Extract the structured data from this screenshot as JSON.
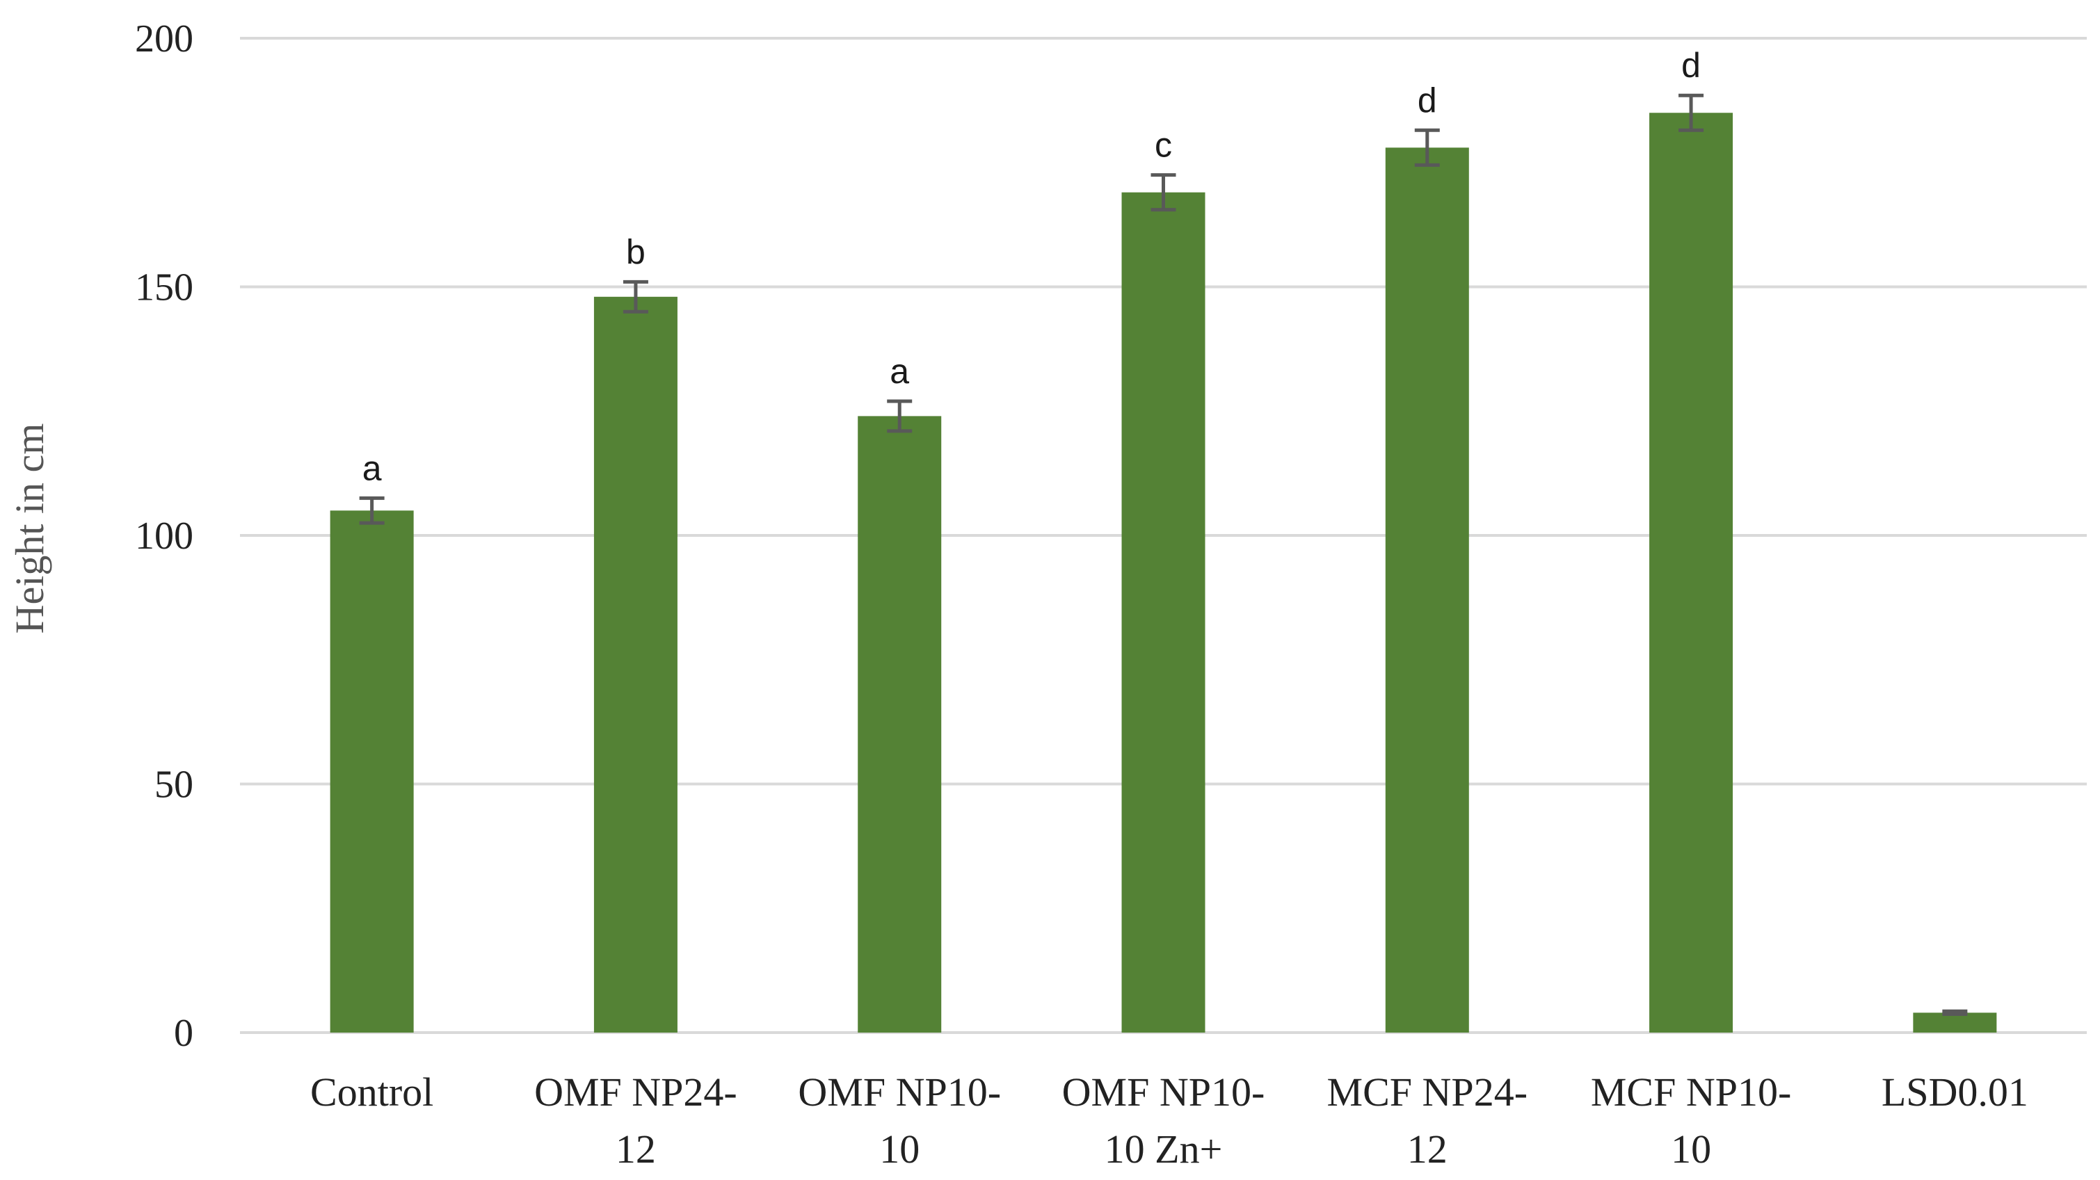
{
  "chart_data": {
    "type": "bar",
    "title": "",
    "xlabel": "",
    "ylabel": "Height in cm",
    "ylim": [
      0,
      200
    ],
    "yticks": [
      0,
      50,
      100,
      150,
      200
    ],
    "grid": true,
    "categories": [
      [
        "Control"
      ],
      [
        "OMF NP24-",
        "12"
      ],
      [
        "OMF NP10-",
        "10"
      ],
      [
        "OMF NP10-",
        "10 Zn+"
      ],
      [
        "MCF NP24-",
        "12"
      ],
      [
        "MCF NP10-",
        "10"
      ],
      [
        "LSD0.01"
      ]
    ],
    "values": [
      105,
      148,
      124,
      169,
      178,
      185,
      4
    ],
    "errors": [
      2.5,
      3,
      3,
      3.5,
      3.5,
      3.5,
      0.3
    ],
    "significance": [
      "a",
      "b",
      "a",
      "c",
      "d",
      "d",
      ""
    ],
    "colors": {
      "bar": "#548235",
      "error_bar": "#595959",
      "grid": "#d9d9d9"
    }
  }
}
